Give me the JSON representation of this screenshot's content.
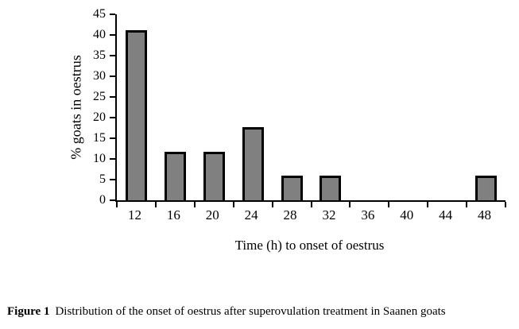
{
  "figure": {
    "caption_label": "Figure 1",
    "caption_text": "Distribution of the onset of oestrus after superovulation treatment in Saanen goats"
  },
  "chart_data": {
    "type": "bar",
    "title": "",
    "xlabel": "Time (h) to onset of oestrus",
    "ylabel": "% goats in oestrus",
    "categories": [
      "12",
      "16",
      "20",
      "24",
      "28",
      "32",
      "36",
      "40",
      "44",
      "48"
    ],
    "values": [
      41.2,
      11.8,
      11.8,
      17.6,
      5.9,
      5.9,
      0,
      0,
      0,
      5.9
    ],
    "ylim": [
      0,
      45
    ],
    "ytick_step": 5,
    "yticks": [
      0,
      5,
      10,
      15,
      20,
      25,
      30,
      35,
      40,
      45
    ],
    "grid": false,
    "legend": false,
    "bar_fill": "#808080",
    "bar_border": "#000000",
    "axis_color": "#000000",
    "background": "#ffffff"
  }
}
